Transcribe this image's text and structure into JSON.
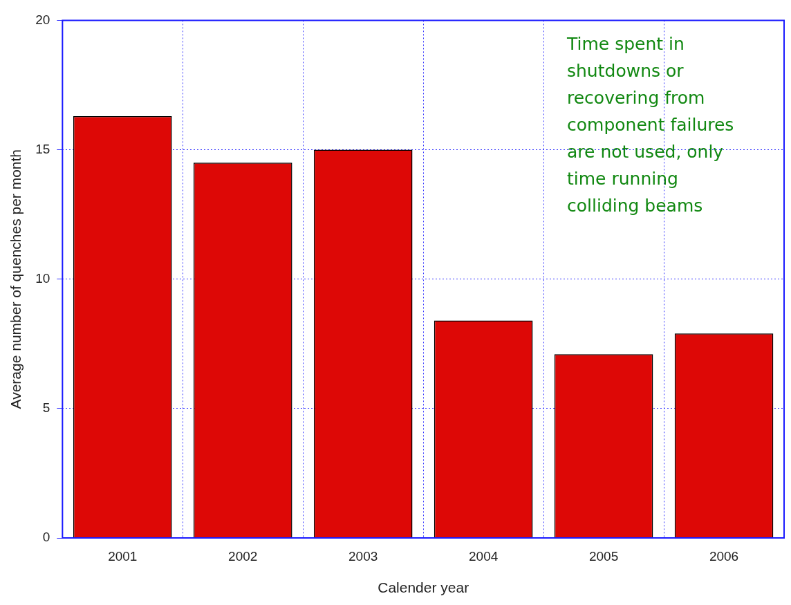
{
  "chart_data": {
    "type": "bar",
    "xlabel": "Calender year",
    "ylabel": "Average number of quenches per month",
    "categories": [
      "2001",
      "2002",
      "2003",
      "2004",
      "2005",
      "2006"
    ],
    "values": [
      16.3,
      14.5,
      15.0,
      8.4,
      7.1,
      7.9
    ],
    "color": "#dd0806",
    "ylim": [
      0,
      20
    ],
    "yticks": [
      0,
      5,
      10,
      15,
      20
    ],
    "grid": true,
    "annotations": [
      "Time spent in shutdowns or recovering from component failures are not used, only time running colliding beams"
    ]
  }
}
